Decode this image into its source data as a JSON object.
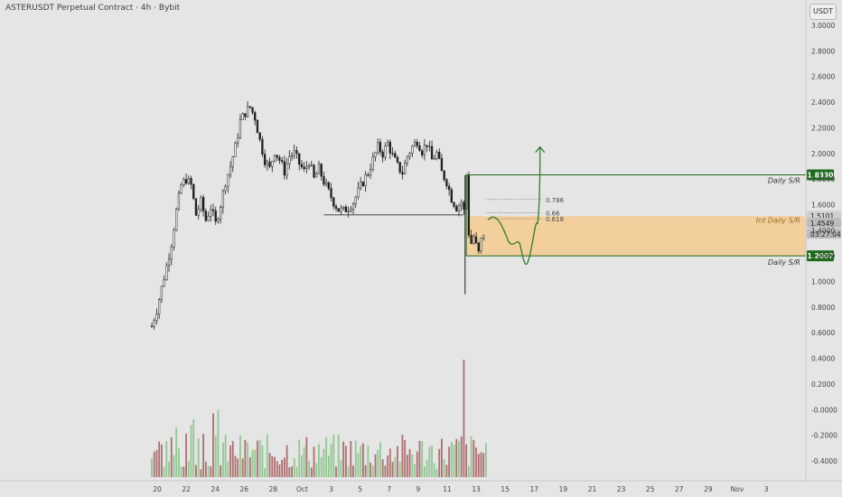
{
  "header": {
    "title": "ASTERUSDT Perpetual Contract · 4h · Bybit",
    "currency_button": "USDT"
  },
  "chart_data": {
    "type": "candlestick",
    "symbol": "ASTERUSDT",
    "timeframe": "4h",
    "exchange": "Bybit",
    "y_axis": {
      "ticks": [
        3.0,
        2.8,
        2.6,
        2.4,
        2.2,
        2.0,
        1.8,
        1.6,
        1.4,
        1.2,
        1.0,
        0.8,
        0.6,
        0.4,
        0.2,
        -0.0,
        -0.2,
        -0.4
      ],
      "tick_labels": [
        "3.0000",
        "2.8000",
        "2.6000",
        "2.4000",
        "2.2000",
        "2.0000",
        "1.8000",
        "1.6000",
        "1.4000",
        "1.2000",
        "1.0000",
        "0.8000",
        "0.6000",
        "0.4000",
        "0.2000",
        "-0.0000",
        "-0.2000",
        "-0.4000"
      ],
      "range": [
        -0.5,
        3.1
      ]
    },
    "x_axis": {
      "tick_labels": [
        "20",
        "22",
        "24",
        "26",
        "28",
        "Oct",
        "3",
        "5",
        "7",
        "9",
        "11",
        "13",
        "15",
        "17",
        "19",
        "21",
        "23",
        "25",
        "27",
        "29",
        "Nov",
        "3"
      ]
    },
    "price_path": [
      [
        0,
        0.65
      ],
      [
        2,
        0.78
      ],
      [
        4,
        0.95
      ],
      [
        6,
        1.12
      ],
      [
        8,
        1.3
      ],
      [
        10,
        1.55
      ],
      [
        12,
        1.75
      ],
      [
        14,
        1.8
      ],
      [
        16,
        1.75
      ],
      [
        18,
        1.52
      ],
      [
        20,
        1.62
      ],
      [
        22,
        1.48
      ],
      [
        24,
        1.58
      ],
      [
        26,
        1.45
      ],
      [
        28,
        1.6
      ],
      [
        30,
        1.78
      ],
      [
        32,
        1.9
      ],
      [
        34,
        2.05
      ],
      [
        36,
        2.25
      ],
      [
        38,
        2.32
      ],
      [
        40,
        2.36
      ],
      [
        42,
        2.28
      ],
      [
        44,
        2.1
      ],
      [
        46,
        1.95
      ],
      [
        48,
        1.88
      ],
      [
        50,
        2.02
      ],
      [
        52,
        1.95
      ],
      [
        54,
        1.86
      ],
      [
        56,
        1.98
      ],
      [
        58,
        2.0
      ],
      [
        60,
        1.92
      ],
      [
        62,
        1.86
      ],
      [
        64,
        1.94
      ],
      [
        66,
        1.8
      ],
      [
        68,
        1.88
      ],
      [
        70,
        1.78
      ],
      [
        72,
        1.7
      ],
      [
        74,
        1.62
      ],
      [
        76,
        1.56
      ],
      [
        78,
        1.55
      ],
      [
        80,
        1.58
      ],
      [
        82,
        1.62
      ],
      [
        84,
        1.7
      ],
      [
        86,
        1.78
      ],
      [
        88,
        1.85
      ],
      [
        90,
        1.95
      ],
      [
        92,
        2.05
      ],
      [
        94,
        2.0
      ],
      [
        96,
        2.08
      ],
      [
        98,
        1.98
      ],
      [
        100,
        1.9
      ],
      [
        102,
        1.85
      ],
      [
        104,
        1.98
      ],
      [
        106,
        2.05
      ],
      [
        108,
        2.1
      ],
      [
        110,
        2.02
      ],
      [
        112,
        2.08
      ],
      [
        114,
        1.95
      ],
      [
        116,
        2.0
      ],
      [
        118,
        1.85
      ],
      [
        120,
        1.78
      ],
      [
        122,
        1.65
      ],
      [
        124,
        1.58
      ],
      [
        126,
        1.62
      ],
      [
        127,
        1.55
      ],
      [
        128,
        1.83
      ],
      [
        129,
        1.38
      ],
      [
        130,
        1.3
      ],
      [
        131,
        1.35
      ],
      [
        132,
        1.28
      ],
      [
        133,
        1.22
      ],
      [
        134,
        1.32
      ],
      [
        135,
        1.38
      ],
      [
        136,
        1.45
      ]
    ],
    "annotations": {
      "levels": [
        {
          "label": "Daily S/R",
          "value": 1.833,
          "badge": "1.8330",
          "color": "#1e6b1e"
        },
        {
          "label": "Daily S/R",
          "value": 1.2007,
          "badge": "1.2007",
          "color": "#1e6b1e"
        },
        {
          "label": "Int Daily S/R",
          "zone": [
            1.2007,
            1.51
          ],
          "color": "#f5c98a"
        }
      ],
      "fib_levels": [
        {
          "label": "0.786",
          "value": 1.64
        },
        {
          "label": "0.66",
          "value": 1.535
        },
        {
          "label": "0.618",
          "value": 1.49
        }
      ],
      "price_labels": [
        {
          "text": "1.5101",
          "value": 1.5101
        },
        {
          "text": "1.4549",
          "value": 1.4549
        },
        {
          "text": "03:27:04",
          "value": 1.37
        }
      ],
      "horizontal_support": {
        "value": 1.52
      },
      "projection": "green curved path with upward arrow"
    },
    "volume": "histogram bars, green and red, bottom panel",
    "colors": {
      "background": "#e5e5e5",
      "candle": "#1f1f1f",
      "zone": "#f3cc94",
      "level": "#2e7d2e",
      "volume_up": "#7ac07a",
      "volume_down": "#a05050"
    }
  }
}
